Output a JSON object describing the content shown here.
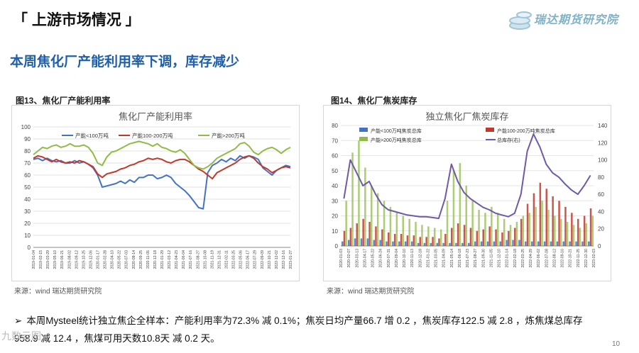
{
  "section_title": "「 上游市场情况 」",
  "logo_text": "瑞达期货研究院",
  "headline": "本周焦化厂产能利用率下调，库存减少",
  "page_number": "10",
  "watermark": "九数云图",
  "bullet": {
    "line1": "本周Mysteel统计独立焦企全样本：产能利用率为72.3% 减 0.1%；焦炭日均产量66.7 增 0.2 ，焦炭库存122.5 减 2.8 ，炼焦煤总库存",
    "line2": "958.9 减 12.4 ，焦煤可用天数10.8天 减 0.2 天。"
  },
  "colors": {
    "headline": "#1f5fa8",
    "blue": "#4472c4",
    "red": "#c0392b",
    "green": "#8fbc45",
    "purple": "#6f5aa8",
    "darkred": "#7b2b2b"
  },
  "chart_data": [
    {
      "caption": "图13、焦化厂产能利用率",
      "source": "来源：wind   瑞达期货研究院",
      "type": "line",
      "title": "焦化厂产能利用率",
      "ylim": [
        0,
        100
      ],
      "yticks": [
        "0",
        "10",
        "20",
        "30",
        "40",
        "50",
        "60",
        "70",
        "80",
        "90",
        "100"
      ],
      "grid": true,
      "legend_position": "top",
      "x_tick_labels": [
        "2019-01-04",
        "2019-02-15",
        "2019-03-29",
        "2019-05-10",
        "2019-06-21",
        "2019-08-02",
        "2019-09-12",
        "2019-10-25",
        "2019-12-06",
        "2020-01-17",
        "2020-02-28",
        "2020-04-10",
        "2020-05-22",
        "2020-07-03",
        "2020-08-14",
        "2020-09-25",
        "2020-11-06",
        "2020-12-18",
        "2021-01-29",
        "2021-03-12",
        "2021-04-23",
        "2021-06-04",
        "2021-07-16",
        "2021-08-27",
        "2021-10-08",
        "2021-11-19",
        "2021-12-31",
        "2022-02-11",
        "2022-03-25",
        "2022-05-06",
        "2022-06-17",
        "2022-07-29",
        "2022-09-09",
        "2022-10-21",
        "2022-12-02",
        "2022-12-16",
        "2023-01-27"
      ],
      "series": [
        {
          "name": "产能<100万吨",
          "color": "blue",
          "values": [
            73,
            74,
            72,
            74,
            72,
            71,
            72,
            70,
            70,
            72,
            70,
            71,
            69,
            66,
            60,
            50,
            51,
            52,
            53,
            55,
            53,
            56,
            54,
            58,
            58,
            60,
            60,
            57,
            58,
            60,
            58,
            53,
            50,
            47,
            43,
            38,
            33,
            32,
            62,
            68,
            70,
            73,
            71,
            74,
            72,
            76,
            74,
            76,
            75,
            73,
            66,
            63,
            60,
            64,
            66,
            68,
            67
          ]
        },
        {
          "name": "产能100-200万吨",
          "color": "red",
          "values": [
            74,
            76,
            75,
            73,
            71,
            73,
            71,
            70,
            71,
            70,
            72,
            71,
            69,
            67,
            61,
            58,
            61,
            62,
            63,
            65,
            66,
            68,
            69,
            71,
            72,
            74,
            73,
            74,
            73,
            71,
            70,
            72,
            73,
            73,
            71,
            68,
            65,
            63,
            60,
            57,
            62,
            64,
            66,
            68,
            70,
            73,
            75,
            76,
            74,
            70,
            67,
            65,
            62,
            64,
            66,
            67,
            66
          ]
        },
        {
          "name": "产能>200万吨",
          "color": "green",
          "values": [
            77,
            80,
            83,
            82,
            84,
            85,
            83,
            84,
            86,
            84,
            84,
            85,
            83,
            78,
            70,
            68,
            75,
            79,
            80,
            82,
            84,
            86,
            87,
            88,
            87,
            86,
            84,
            86,
            83,
            82,
            80,
            79,
            81,
            78,
            73,
            68,
            66,
            65,
            67,
            70,
            74,
            76,
            78,
            80,
            82,
            86,
            87,
            84,
            79,
            77,
            80,
            82,
            83,
            81,
            78,
            81,
            83
          ]
        }
      ]
    },
    {
      "caption": "图14、焦化厂焦炭库存",
      "source": "来源：wind   瑞达期货研究院",
      "type": "bar",
      "title": "独立焦化厂焦炭库存",
      "ylim_left": [
        0,
        80
      ],
      "ylim_right": [
        0,
        140
      ],
      "yticks_left": [
        "0",
        "10",
        "20",
        "30",
        "40",
        "50",
        "60",
        "70",
        "80"
      ],
      "yticks_right": [
        "0",
        "20",
        "40",
        "60",
        "80",
        "100",
        "120",
        "140"
      ],
      "grid": true,
      "legend_position": "top",
      "x_tick_labels": [
        "2020-01-03",
        "2020-02-07",
        "2020-03-13",
        "2020-04-17",
        "2020-05-22",
        "2020-06-24",
        "2020-07-31",
        "2020-09-04",
        "2020-10-10",
        "2020-11-13",
        "2020-12-18",
        "2021-01-22",
        "2021-03-05",
        "2021-04-09",
        "2021-05-14",
        "2021-06-18",
        "2021-07-23",
        "2021-08-27",
        "2021-09-30",
        "2021-11-05",
        "2021-12-10",
        "2022-01-14",
        "2022-02-18",
        "2022-03-25",
        "2022-04-29",
        "2022-06-02",
        "2022-07-08",
        "2022-08-12",
        "2022-09-16",
        "2022-10-21",
        "2022-11-25",
        "2022-12-30",
        "2023-02-03"
      ],
      "series": [
        {
          "name": "产能<100万吨焦炭总库",
          "kind": "bar",
          "axis": "left",
          "color": "blue",
          "values": [
            3,
            4,
            5,
            5,
            5,
            4,
            4,
            3,
            3,
            3,
            3,
            3,
            2,
            2,
            2,
            2,
            2,
            2,
            2,
            2,
            2,
            3,
            3,
            3,
            3,
            3,
            4,
            4,
            4,
            3,
            3,
            3,
            3,
            3,
            3,
            3,
            3,
            3,
            3,
            3
          ]
        },
        {
          "name": "产能100-200万吨焦炭总库",
          "kind": "bar",
          "axis": "left",
          "color": "red",
          "values": [
            10,
            12,
            15,
            18,
            16,
            13,
            11,
            9,
            8,
            8,
            7,
            7,
            6,
            6,
            6,
            5,
            8,
            12,
            15,
            14,
            12,
            10,
            11,
            13,
            11,
            9,
            10,
            12,
            18,
            28,
            35,
            42,
            38,
            33,
            30,
            26,
            22,
            18,
            20,
            25
          ]
        },
        {
          "name": "产能>200万吨焦炭总库",
          "kind": "bar",
          "axis": "left",
          "color": "green",
          "values": [
            30,
            62,
            70,
            52,
            40,
            35,
            30,
            26,
            22,
            20,
            18,
            16,
            14,
            13,
            12,
            11,
            30,
            50,
            55,
            40,
            30,
            24,
            22,
            26,
            22,
            18,
            14,
            16,
            20,
            22,
            26,
            30,
            24,
            20,
            18,
            16,
            14,
            12,
            15,
            20
          ]
        },
        {
          "name": "总库存(右)",
          "kind": "line",
          "axis": "right",
          "color": "purple",
          "values": [
            55,
            100,
            85,
            70,
            75,
            60,
            48,
            42,
            40,
            38,
            36,
            35,
            34,
            34,
            33,
            32,
            55,
            95,
            75,
            62,
            55,
            50,
            45,
            42,
            38,
            36,
            34,
            38,
            60,
            110,
            130,
            115,
            95,
            85,
            80,
            72,
            65,
            60,
            70,
            82
          ]
        }
      ]
    }
  ]
}
